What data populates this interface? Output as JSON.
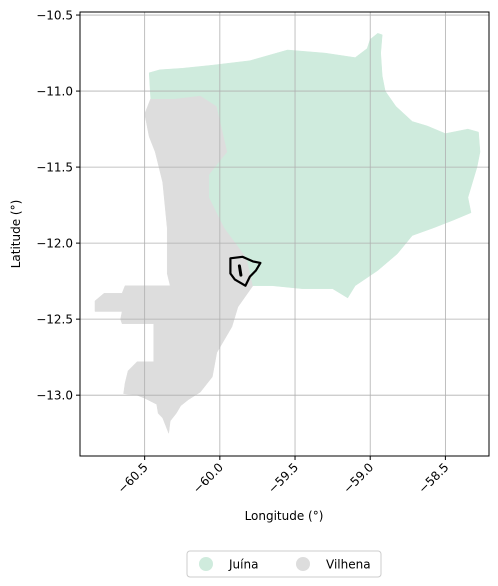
{
  "chart_data": {
    "type": "choropleth-map",
    "xlabel": "Longitude (°)",
    "ylabel": "Latitude (°)",
    "xlim": [
      -60.93,
      -58.21
    ],
    "ylim": [
      -13.4,
      -10.48
    ],
    "xticks": [
      -60.5,
      -60.0,
      -59.5,
      -59.0,
      -58.5
    ],
    "xtick_labels": [
      "−60.5",
      "−60.0",
      "−59.5",
      "−59.0",
      "−58.5"
    ],
    "yticks": [
      -10.5,
      -11.0,
      -11.5,
      -12.0,
      -12.5,
      -13.0
    ],
    "ytick_labels": [
      "−10.5",
      "−11.0",
      "−11.5",
      "−12.0",
      "−12.5",
      "−13.0"
    ],
    "grid": true,
    "legend": {
      "placement": "bottom-center",
      "entries": [
        {
          "label": "Juína",
          "color": "#cfebdd"
        },
        {
          "label": "Vilhena",
          "color": "#dddddd"
        }
      ]
    },
    "regions": [
      {
        "name": "Vilhena",
        "color": "#dddddd",
        "polygon": [
          [
            -60.46,
            -11.05
          ],
          [
            -60.3,
            -11.05
          ],
          [
            -60.13,
            -11.03
          ],
          [
            -60.02,
            -11.1
          ],
          [
            -59.95,
            -11.4
          ],
          [
            -59.97,
            -11.9
          ],
          [
            -59.82,
            -12.1
          ],
          [
            -59.78,
            -12.28
          ],
          [
            -59.88,
            -12.42
          ],
          [
            -59.92,
            -12.55
          ],
          [
            -60.02,
            -12.72
          ],
          [
            -60.05,
            -12.88
          ],
          [
            -60.13,
            -12.98
          ],
          [
            -60.21,
            -13.03
          ],
          [
            -60.26,
            -13.07
          ],
          [
            -60.29,
            -13.12
          ],
          [
            -60.33,
            -13.17
          ],
          [
            -60.34,
            -13.25
          ],
          [
            -60.36,
            -13.2
          ],
          [
            -60.38,
            -13.15
          ],
          [
            -60.41,
            -13.12
          ],
          [
            -60.42,
            -13.06
          ],
          [
            -60.5,
            -13.02
          ],
          [
            -60.55,
            -13.0
          ],
          [
            -60.64,
            -12.99
          ],
          [
            -60.63,
            -12.92
          ],
          [
            -60.61,
            -12.84
          ],
          [
            -60.55,
            -12.78
          ],
          [
            -60.44,
            -12.78
          ],
          [
            -60.44,
            -12.53
          ],
          [
            -60.65,
            -12.53
          ],
          [
            -60.66,
            -12.5
          ],
          [
            -60.65,
            -12.45
          ],
          [
            -60.83,
            -12.45
          ],
          [
            -60.83,
            -12.38
          ],
          [
            -60.77,
            -12.33
          ],
          [
            -60.65,
            -12.33
          ],
          [
            -60.63,
            -12.28
          ],
          [
            -60.33,
            -12.28
          ],
          [
            -60.35,
            -12.2
          ],
          [
            -60.35,
            -11.9
          ],
          [
            -60.38,
            -11.6
          ],
          [
            -60.43,
            -11.4
          ],
          [
            -60.47,
            -11.3
          ],
          [
            -60.5,
            -11.15
          ]
        ]
      },
      {
        "name": "Juína",
        "color": "#cfebdd",
        "polygon": [
          [
            -60.47,
            -10.88
          ],
          [
            -60.4,
            -10.86
          ],
          [
            -60.25,
            -10.85
          ],
          [
            -60.05,
            -10.83
          ],
          [
            -59.8,
            -10.8
          ],
          [
            -59.55,
            -10.73
          ],
          [
            -59.3,
            -10.75
          ],
          [
            -59.1,
            -10.78
          ],
          [
            -59.02,
            -10.72
          ],
          [
            -59.0,
            -10.66
          ],
          [
            -58.95,
            -10.62
          ],
          [
            -58.92,
            -10.63
          ],
          [
            -58.93,
            -10.75
          ],
          [
            -58.92,
            -10.9
          ],
          [
            -58.9,
            -11.0
          ],
          [
            -58.83,
            -11.1
          ],
          [
            -58.72,
            -11.2
          ],
          [
            -58.62,
            -11.23
          ],
          [
            -58.5,
            -11.28
          ],
          [
            -58.35,
            -11.25
          ],
          [
            -58.28,
            -11.27
          ],
          [
            -58.27,
            -11.4
          ],
          [
            -58.29,
            -11.5
          ],
          [
            -58.35,
            -11.7
          ],
          [
            -58.33,
            -11.8
          ],
          [
            -58.45,
            -11.85
          ],
          [
            -58.58,
            -11.9
          ],
          [
            -58.72,
            -11.95
          ],
          [
            -58.82,
            -12.07
          ],
          [
            -58.95,
            -12.18
          ],
          [
            -59.1,
            -12.28
          ],
          [
            -59.15,
            -12.36
          ],
          [
            -59.25,
            -12.3
          ],
          [
            -59.45,
            -12.3
          ],
          [
            -59.65,
            -12.28
          ],
          [
            -59.78,
            -12.28
          ],
          [
            -59.82,
            -12.1
          ],
          [
            -59.97,
            -11.9
          ],
          [
            -60.07,
            -11.7
          ],
          [
            -60.07,
            -11.55
          ],
          [
            -59.95,
            -11.4
          ],
          [
            -60.02,
            -11.1
          ],
          [
            -60.13,
            -11.03
          ],
          [
            -60.3,
            -11.05
          ],
          [
            -60.46,
            -11.05
          ]
        ]
      }
    ],
    "outline": {
      "color": "#000000",
      "polygon": [
        [
          -59.93,
          -12.1
        ],
        [
          -59.85,
          -12.09
        ],
        [
          -59.78,
          -12.12
        ],
        [
          -59.73,
          -12.13
        ],
        [
          -59.76,
          -12.18
        ],
        [
          -59.8,
          -12.22
        ],
        [
          -59.83,
          -12.28
        ],
        [
          -59.9,
          -12.24
        ],
        [
          -59.93,
          -12.2
        ]
      ],
      "inner_mark": [
        [
          -59.87,
          -12.15
        ],
        [
          -59.86,
          -12.21
        ]
      ]
    }
  }
}
